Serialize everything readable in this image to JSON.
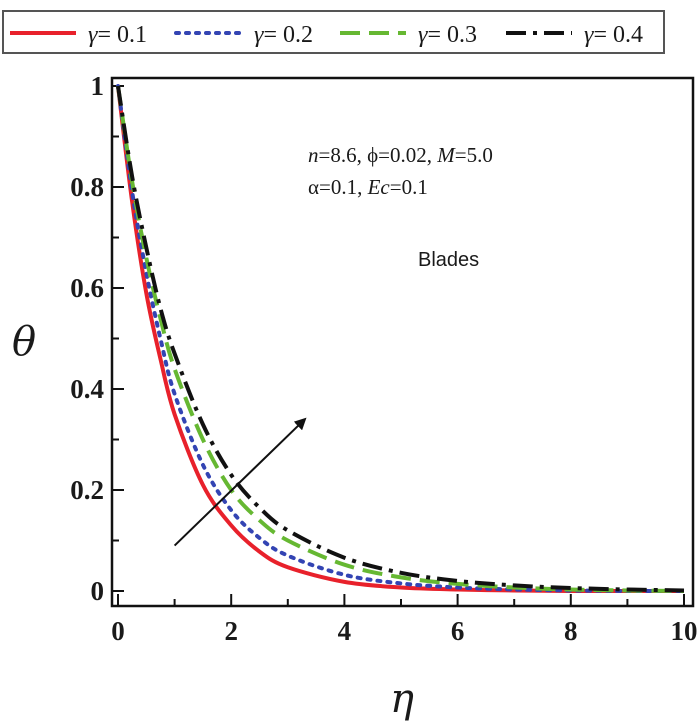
{
  "chart_data": {
    "type": "line",
    "xlabel": "η",
    "ylabel": "θ",
    "xlim": [
      0,
      10
    ],
    "ylim": [
      0,
      1
    ],
    "x_ticks": [
      "0",
      "2",
      "4",
      "6",
      "8",
      "10"
    ],
    "y_ticks": [
      "0",
      "0.2",
      "0.4",
      "0.6",
      "0.8",
      "1"
    ],
    "legend_position": "top",
    "grid": false,
    "series": [
      {
        "name": "γ= 0.1",
        "symbol": "γ",
        "value_text": "= 0.1",
        "color": "#e8212b",
        "style": "solid",
        "x": [
          0,
          0.25,
          0.5,
          0.75,
          1,
          1.5,
          2,
          2.5,
          3,
          4,
          5,
          6,
          7,
          8,
          9,
          10
        ],
        "y": [
          1,
          0.77,
          0.59,
          0.46,
          0.35,
          0.21,
          0.13,
          0.078,
          0.047,
          0.018,
          0.007,
          0.003,
          0.001,
          0,
          0,
          0
        ]
      },
      {
        "name": "γ= 0.2",
        "symbol": "γ",
        "value_text": "= 0.2",
        "color": "#3344b3",
        "style": "dotted",
        "x": [
          0,
          0.25,
          0.5,
          0.75,
          1,
          1.5,
          2,
          2.5,
          3,
          4,
          5,
          6,
          7,
          8,
          9,
          10
        ],
        "y": [
          1,
          0.79,
          0.63,
          0.5,
          0.39,
          0.25,
          0.16,
          0.105,
          0.07,
          0.032,
          0.015,
          0.007,
          0.003,
          0.001,
          0,
          0
        ]
      },
      {
        "name": "γ= 0.3",
        "symbol": "γ",
        "value_text": "= 0.3",
        "color": "#66b832",
        "style": "dashed",
        "x": [
          0,
          0.25,
          0.5,
          0.75,
          1,
          1.5,
          2,
          2.5,
          3,
          4,
          5,
          6,
          7,
          8,
          9,
          10
        ],
        "y": [
          1,
          0.81,
          0.66,
          0.54,
          0.44,
          0.3,
          0.2,
          0.14,
          0.1,
          0.052,
          0.027,
          0.014,
          0.007,
          0.003,
          0.001,
          0
        ]
      },
      {
        "name": "γ= 0.4",
        "symbol": "γ",
        "value_text": "= 0.4",
        "color": "#111111",
        "style": "dashdot",
        "x": [
          0,
          0.25,
          0.5,
          0.75,
          1,
          1.5,
          2,
          2.5,
          3,
          4,
          5,
          6,
          7,
          8,
          9,
          10
        ],
        "y": [
          1,
          0.82,
          0.68,
          0.56,
          0.47,
          0.33,
          0.23,
          0.165,
          0.12,
          0.066,
          0.036,
          0.02,
          0.011,
          0.006,
          0.003,
          0.001
        ]
      }
    ],
    "arrow": {
      "from": [
        1.0,
        0.09
      ],
      "to": [
        3.3,
        0.34
      ]
    },
    "annotations": {
      "line1": {
        "n_sym": "n",
        "n_val": "=8.6, ",
        "phi": "ϕ=0.02, ",
        "m_sym": "M",
        "m_val": "=5.0"
      },
      "line2": {
        "alpha": "α=0.1, ",
        "ec_sym": "Ec",
        "ec_val": "=0.1"
      },
      "label": "Blades"
    }
  }
}
